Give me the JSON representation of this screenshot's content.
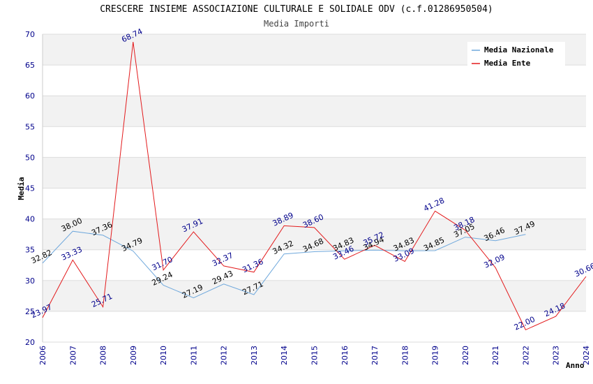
{
  "chart_data": {
    "type": "line",
    "title": "CRESCERE INSIEME ASSOCIAZIONE CULTURALE E SOLIDALE ODV (c.f.01286950504)",
    "subtitle": "Media Importi",
    "xlabel": "Anno",
    "ylabel": "Media",
    "ylim": [
      20,
      70
    ],
    "yticks": [
      20,
      25,
      30,
      35,
      40,
      45,
      50,
      55,
      60,
      65,
      70
    ],
    "grid": true,
    "legend_position": "top-right",
    "x": [
      "2006",
      "2007",
      "2008",
      "2009",
      "2010",
      "2011",
      "2012",
      "2013",
      "2014",
      "2015",
      "2016",
      "2017",
      "2018",
      "2019",
      "2020",
      "2021",
      "2022",
      "2023",
      "2024"
    ],
    "series": [
      {
        "name": "Media Nazionale",
        "color": "#6fa8dc",
        "label_color": "#000000",
        "values": [
          32.82,
          38.0,
          37.36,
          34.79,
          29.24,
          27.19,
          29.43,
          27.71,
          34.32,
          34.68,
          34.83,
          34.94,
          34.83,
          34.85,
          37.05,
          36.46,
          37.49,
          null,
          null
        ],
        "labels": [
          "32.82",
          "38.00",
          "37.36",
          "34.79",
          "29.24",
          "27.19",
          "29.43",
          "27.71",
          "34.32",
          "34.68",
          "34.83",
          "34.94",
          "34.83",
          "34.85",
          "37.05",
          "36.46",
          "37.49",
          "",
          ""
        ]
      },
      {
        "name": "Media Ente",
        "color": "#e31a1c",
        "label_color": "#00008b",
        "values": [
          23.97,
          33.33,
          25.71,
          68.74,
          31.7,
          37.91,
          32.37,
          31.36,
          38.89,
          38.6,
          33.46,
          35.72,
          33.09,
          41.28,
          38.18,
          32.09,
          22.0,
          24.18,
          30.66
        ],
        "labels": [
          "23.97",
          "33.33",
          "25.71",
          "68.74",
          "31.70",
          "37.91",
          "32.37",
          "31.36",
          "38.89",
          "38.60",
          "33.46",
          "35.72",
          "33.09",
          "41.28",
          "38.18",
          "32.09",
          "22.00",
          "24.18",
          "30.66"
        ]
      }
    ]
  },
  "colors": {
    "band": "#f2f2f2",
    "grid": "#dddddd",
    "tick_text": "#00008b"
  }
}
